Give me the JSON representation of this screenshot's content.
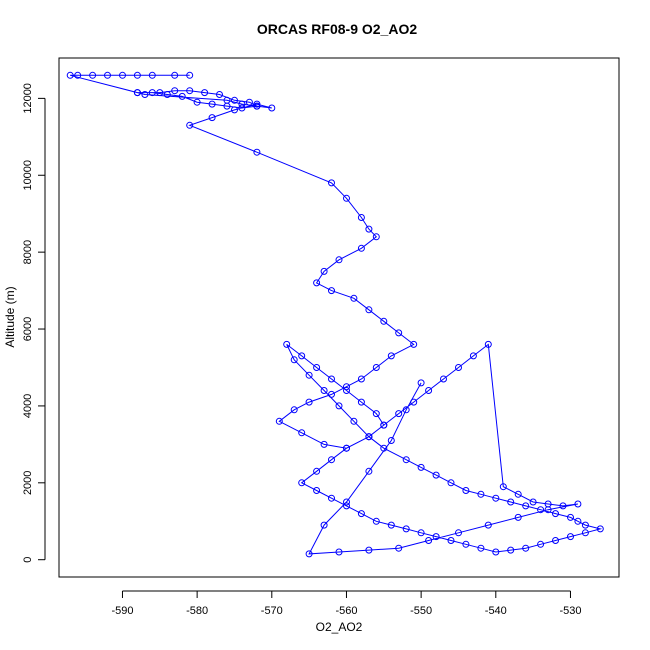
{
  "chart_data": {
    "type": "line",
    "title": "ORCAS RF08-9 O2_AO2",
    "xlabel": "O2_AO2",
    "ylabel": "Altitude (m)",
    "xlim": [
      -598.5,
      -523.5
    ],
    "ylim": [
      -450,
      13050
    ],
    "xticks": [
      -590,
      -580,
      -570,
      -560,
      -550,
      -540,
      -530
    ],
    "yticks": [
      0,
      2000,
      4000,
      6000,
      8000,
      10000,
      12000
    ],
    "grid": false,
    "legend": "none",
    "colors": {
      "series": "#0000ff",
      "axis": "#000000"
    },
    "markers": "open-circle",
    "series": [
      {
        "x": [
          -581,
          -583,
          -586,
          -588,
          -590,
          -592,
          -594,
          -596,
          -597,
          -588,
          -585,
          -583,
          -581,
          -579,
          -577,
          -575,
          -573,
          -572,
          -574,
          -576,
          -578,
          -580,
          -582,
          -584,
          -586,
          -588,
          -587,
          -576,
          -574,
          -572,
          -570,
          -572,
          -575,
          -578,
          -581,
          -572,
          -562,
          -560,
          -558,
          -557,
          -556,
          -558,
          -561,
          -563,
          -564,
          -562,
          -559,
          -557,
          -555,
          -553,
          -551,
          -554,
          -556,
          -558,
          -560,
          -562,
          -565,
          -567,
          -569,
          -566,
          -563,
          -560,
          -557,
          -555,
          -556,
          -558,
          -560,
          -562,
          -564,
          -566,
          -568,
          -567,
          -565,
          -563,
          -561,
          -559,
          -557,
          -555,
          -552,
          -550,
          -548,
          -546,
          -544,
          -542,
          -540,
          -538,
          -536,
          -534,
          -532,
          -530,
          -529,
          -528,
          -526,
          -528,
          -530,
          -532,
          -534,
          -536,
          -538,
          -540,
          -542,
          -544,
          -546,
          -548,
          -550,
          -552,
          -554,
          -556,
          -558,
          -560,
          -562,
          -564,
          -566,
          -564,
          -562,
          -560,
          -557,
          -555,
          -553,
          -551,
          -549,
          -547,
          -545,
          -543,
          -541,
          -539,
          -537,
          -535,
          -533,
          -531,
          -529,
          -533,
          -537,
          -541,
          -545,
          -549,
          -553,
          -557,
          -561,
          -565,
          -563,
          -560,
          -557,
          -554,
          -552,
          -550
        ],
        "y": [
          12600,
          12600,
          12600,
          12600,
          12600,
          12600,
          12600,
          12600,
          12600,
          12150,
          12150,
          12200,
          12200,
          12150,
          12100,
          11950,
          11900,
          11800,
          11750,
          11800,
          11850,
          11900,
          12050,
          12100,
          12150,
          12150,
          12100,
          11950,
          11850,
          11800,
          11750,
          11850,
          11700,
          11500,
          11300,
          10600,
          9800,
          9400,
          8900,
          8600,
          8400,
          8100,
          7800,
          7500,
          7200,
          7000,
          6800,
          6500,
          6200,
          5900,
          5600,
          5300,
          5000,
          4700,
          4500,
          4300,
          4100,
          3900,
          3600,
          3300,
          3000,
          2900,
          3200,
          3500,
          3800,
          4100,
          4400,
          4700,
          5000,
          5300,
          5600,
          5200,
          4800,
          4400,
          4000,
          3600,
          3200,
          2900,
          2600,
          2400,
          2200,
          2000,
          1800,
          1700,
          1600,
          1500,
          1400,
          1300,
          1200,
          1100,
          1000,
          900,
          800,
          700,
          600,
          500,
          400,
          300,
          250,
          200,
          300,
          400,
          500,
          600,
          700,
          800,
          900,
          1000,
          1200,
          1400,
          1600,
          1800,
          2000,
          2300,
          2600,
          2900,
          3200,
          3500,
          3800,
          4100,
          4400,
          4700,
          5000,
          5300,
          5600,
          1900,
          1700,
          1500,
          1450,
          1400,
          1450,
          1300,
          1100,
          900,
          700,
          500,
          300,
          250,
          200,
          150,
          900,
          1500,
          2300,
          3100,
          3900,
          4600
        ]
      }
    ]
  }
}
